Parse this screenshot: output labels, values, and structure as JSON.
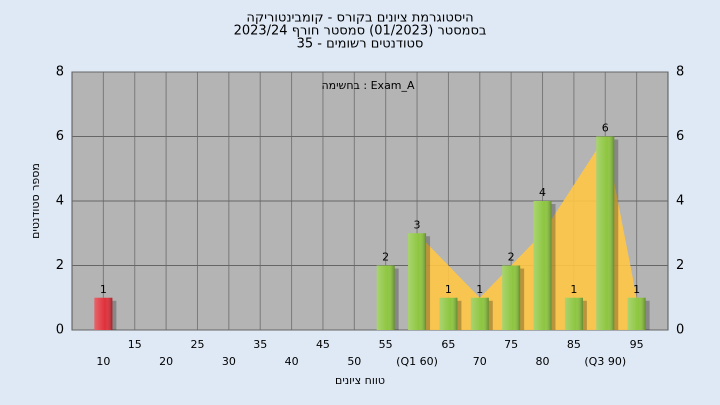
{
  "chart_data": {
    "type": "bar",
    "title": [
      "היסטוגרמת ציונים בקורס - קומבינטוריקה",
      "בסמסטר  (01/2023)  סמסטר חורף 2023/24",
      "סטודנטים רשומים - 35"
    ],
    "annotation": "בחשימה : Exam_A",
    "x_label": "טווח ציונים",
    "y_label": "מספר סטודנטים",
    "categories": [
      "10",
      "15",
      "20",
      "25",
      "30",
      "35",
      "40",
      "45",
      "50",
      "55",
      "(Q1 60)",
      "65",
      "70",
      "75",
      "80",
      "85",
      "(Q3 90)",
      "95"
    ],
    "values": [
      1,
      0,
      0,
      0,
      0,
      0,
      0,
      0,
      0,
      2,
      3,
      1,
      1,
      2,
      4,
      1,
      6,
      1
    ],
    "colors": [
      "#e0303a",
      "#8dc640",
      "#8dc640",
      "#8dc640",
      "#8dc640",
      "#8dc640",
      "#8dc640",
      "#8dc640",
      "#8dc640",
      "#8dc640",
      "#8dc640",
      "#8dc640",
      "#8dc640",
      "#8dc640",
      "#8dc640",
      "#8dc640",
      "#8dc640",
      "#8dc640"
    ],
    "area": {
      "color": "#ffc845",
      "values": [
        null,
        null,
        null,
        null,
        null,
        null,
        null,
        null,
        null,
        null,
        3,
        2,
        1,
        2,
        3,
        4.5,
        6,
        1
      ]
    },
    "ylim": [
      0,
      8
    ],
    "yticks": [
      0,
      2,
      4,
      6,
      8
    ],
    "grid": true
  }
}
